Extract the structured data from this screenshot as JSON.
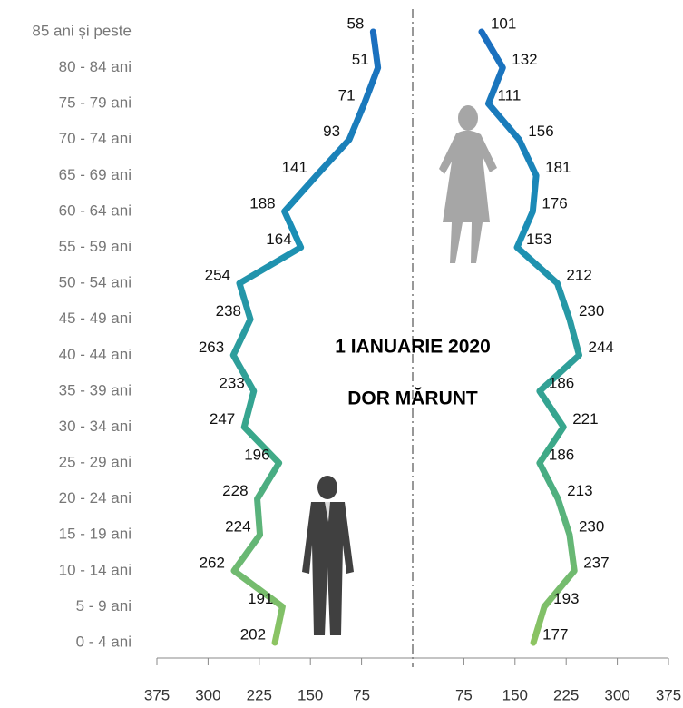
{
  "chart_data": {
    "type": "pyramid-line",
    "categories": [
      "85 ani și peste",
      "80 - 84 ani",
      "75 - 79 ani",
      "70 - 74 ani",
      "65 - 69 ani",
      "60 - 64 ani",
      "55 - 59 ani",
      "50 - 54 ani",
      "45 - 49 ani",
      "40 - 44 ani",
      "35 - 39 ani",
      "30 - 34 ani",
      "25 - 29 ani",
      "20 - 24 ani",
      "15 - 19 ani",
      "10 - 14 ani",
      "5 - 9 ani",
      "0 - 4 ani"
    ],
    "series": [
      {
        "side": "left",
        "values": [
          58,
          51,
          71,
          93,
          141,
          188,
          164,
          254,
          238,
          263,
          233,
          247,
          196,
          228,
          224,
          262,
          191,
          202
        ]
      },
      {
        "side": "right",
        "values": [
          101,
          132,
          111,
          156,
          181,
          176,
          153,
          212,
          230,
          244,
          186,
          221,
          186,
          213,
          230,
          237,
          193,
          177
        ]
      }
    ],
    "gradient": [
      "#1a6dc0",
      "#1b8fb5",
      "#3aa88a",
      "#8dc462"
    ],
    "xlim": [
      0,
      375
    ],
    "xticks": [
      75,
      150,
      225,
      300,
      375
    ],
    "annotations": [
      "1 IANUARIE 2020",
      "DOR MĂRUNT"
    ]
  }
}
